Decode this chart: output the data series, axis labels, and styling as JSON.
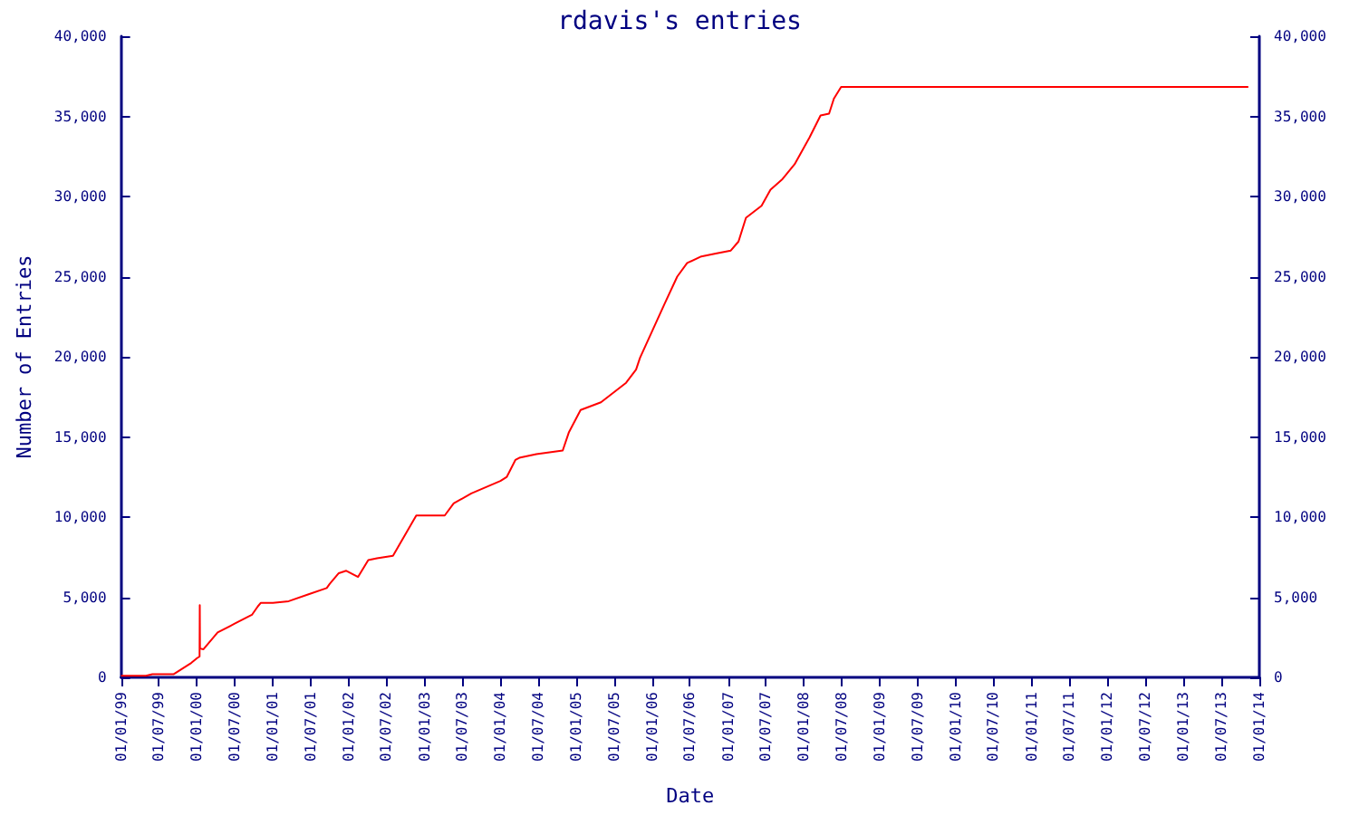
{
  "chart_data": {
    "type": "line",
    "title": "rdavis's entries",
    "xlabel": "Date",
    "ylabel": "Number of Entries",
    "x": [
      "1999-01-01",
      "1999-05-01",
      "1999-06-01",
      "1999-09-12",
      "1999-12-05",
      "2000-01-02",
      "2000-01-14",
      "2000-01-15",
      "2000-01-16",
      "2000-02-01",
      "2000-04-10",
      "2000-07-01",
      "2000-09-22",
      "2000-10-20",
      "2000-11-04",
      "2001-01-01",
      "2001-03-18",
      "2001-06-25",
      "2001-09-17",
      "2001-10-01",
      "2001-11-14",
      "2001-12-20",
      "2002-02-15",
      "2002-04-05",
      "2002-05-17",
      "2002-08-02",
      "2002-11-22",
      "2003-04-08",
      "2003-05-21",
      "2003-08-14",
      "2004-01-01",
      "2004-02-01",
      "2004-03-13",
      "2004-04-01",
      "2004-06-22",
      "2004-10-27",
      "2004-11-26",
      "2005-01-21",
      "2005-04-29",
      "2005-08-28",
      "2005-10-15",
      "2005-11-03",
      "2006-03-01",
      "2006-05-01",
      "2006-06-18",
      "2006-08-25",
      "2006-11-02",
      "2007-01-14",
      "2007-02-20",
      "2007-03-28",
      "2007-06-11",
      "2007-07-24",
      "2007-09-20",
      "2007-11-17",
      "2008-01-28",
      "2008-03-21",
      "2008-05-01",
      "2008-05-24",
      "2008-06-28",
      "2013-11-09"
    ],
    "series": [
      {
        "color": "#ff0000",
        "values": [
          100,
          100,
          200,
          200,
          900,
          1200,
          1300,
          4500,
          1800,
          1750,
          2800,
          3350,
          3900,
          4420,
          4650,
          4650,
          4750,
          5200,
          5570,
          5830,
          6500,
          6650,
          6270,
          7320,
          7430,
          7580,
          10100,
          10100,
          10850,
          11480,
          12250,
          12510,
          13560,
          13700,
          13930,
          14150,
          15300,
          16680,
          17160,
          18380,
          19200,
          19940,
          23300,
          25000,
          25850,
          26260,
          26440,
          26630,
          27190,
          28670,
          29420,
          30420,
          31090,
          32010,
          33690,
          35060,
          35170,
          36100,
          36840,
          36840
        ]
      }
    ],
    "xlim": [
      "1999-01-01",
      "2014-01-01"
    ],
    "xticks": [
      {
        "value": "1999-01-01",
        "label": "01/01/99"
      },
      {
        "value": "1999-07-01",
        "label": "01/07/99"
      },
      {
        "value": "2000-01-01",
        "label": "01/01/00"
      },
      {
        "value": "2000-07-01",
        "label": "01/07/00"
      },
      {
        "value": "2001-01-01",
        "label": "01/01/01"
      },
      {
        "value": "2001-07-01",
        "label": "01/07/01"
      },
      {
        "value": "2002-01-01",
        "label": "01/01/02"
      },
      {
        "value": "2002-07-01",
        "label": "01/07/02"
      },
      {
        "value": "2003-01-01",
        "label": "01/01/03"
      },
      {
        "value": "2003-07-01",
        "label": "01/07/03"
      },
      {
        "value": "2004-01-01",
        "label": "01/01/04"
      },
      {
        "value": "2004-07-01",
        "label": "01/07/04"
      },
      {
        "value": "2005-01-01",
        "label": "01/01/05"
      },
      {
        "value": "2005-07-01",
        "label": "01/07/05"
      },
      {
        "value": "2006-01-01",
        "label": "01/01/06"
      },
      {
        "value": "2006-07-01",
        "label": "01/07/06"
      },
      {
        "value": "2007-01-01",
        "label": "01/01/07"
      },
      {
        "value": "2007-07-01",
        "label": "01/07/07"
      },
      {
        "value": "2008-01-01",
        "label": "01/01/08"
      },
      {
        "value": "2008-07-01",
        "label": "01/07/08"
      },
      {
        "value": "2009-01-01",
        "label": "01/01/09"
      },
      {
        "value": "2009-07-01",
        "label": "01/07/09"
      },
      {
        "value": "2010-01-01",
        "label": "01/01/10"
      },
      {
        "value": "2010-07-01",
        "label": "01/07/10"
      },
      {
        "value": "2011-01-01",
        "label": "01/01/11"
      },
      {
        "value": "2011-07-01",
        "label": "01/07/11"
      },
      {
        "value": "2012-01-01",
        "label": "01/01/12"
      },
      {
        "value": "2012-07-01",
        "label": "01/07/12"
      },
      {
        "value": "2013-01-01",
        "label": "01/01/13"
      },
      {
        "value": "2013-07-01",
        "label": "01/07/13"
      },
      {
        "value": "2014-01-01",
        "label": "01/01/14"
      }
    ],
    "ylim": [
      0,
      40000
    ],
    "yticks": [
      {
        "value": 0,
        "label": "0"
      },
      {
        "value": 5000,
        "label": "5,000"
      },
      {
        "value": 10000,
        "label": "10,000"
      },
      {
        "value": 15000,
        "label": "15,000"
      },
      {
        "value": 20000,
        "label": "20,000"
      },
      {
        "value": 25000,
        "label": "25,000"
      },
      {
        "value": 30000,
        "label": "30,000"
      },
      {
        "value": 35000,
        "label": "35,000"
      },
      {
        "value": 40000,
        "label": "40,000"
      }
    ],
    "y2lim": [
      0,
      40000
    ],
    "y2ticks": [
      {
        "value": 0,
        "label": "0"
      },
      {
        "value": 5000,
        "label": "5,000"
      },
      {
        "value": 10000,
        "label": "10,000"
      },
      {
        "value": 15000,
        "label": "15,000"
      },
      {
        "value": 20000,
        "label": "20,000"
      },
      {
        "value": 25000,
        "label": "25,000"
      },
      {
        "value": 30000,
        "label": "30,000"
      },
      {
        "value": 35000,
        "label": "35,000"
      },
      {
        "value": 40000,
        "label": "40,000"
      }
    ],
    "grid": false,
    "marker": "none",
    "line_style": "solid"
  }
}
